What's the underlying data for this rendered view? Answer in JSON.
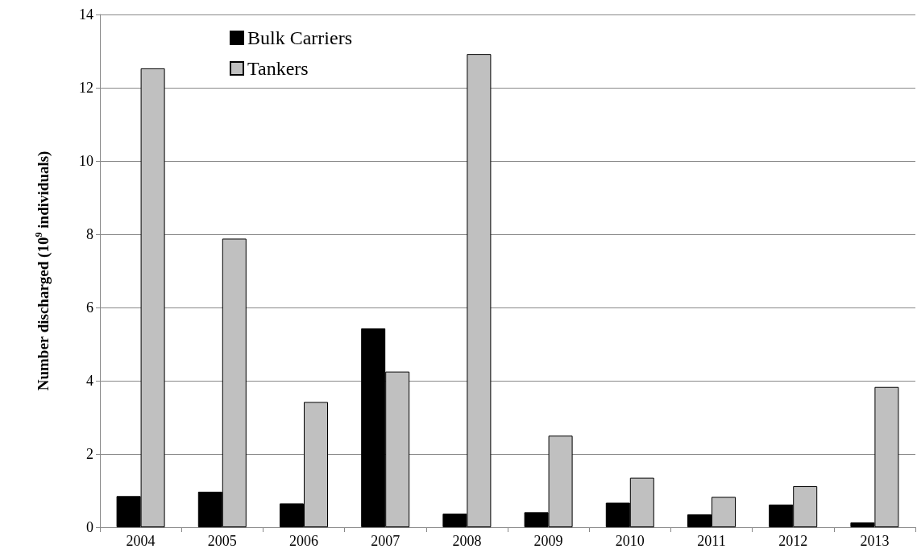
{
  "chart_data": {
    "type": "bar",
    "ylabel": "Number discharged (10$^{9}$ individuals)",
    "categories": [
      "2004",
      "2005",
      "2006",
      "2007",
      "2008",
      "2009",
      "2010",
      "2011",
      "2012",
      "2013"
    ],
    "series": [
      {
        "name": "Bulk Carriers",
        "color": "#000000",
        "values": [
          0.85,
          0.97,
          0.65,
          5.43,
          0.37,
          0.41,
          0.67,
          0.35,
          0.62,
          0.13
        ]
      },
      {
        "name": "Tankers",
        "color": "#c0c0c0",
        "values": [
          12.53,
          7.88,
          3.42,
          4.25,
          12.92,
          2.5,
          1.35,
          0.83,
          1.12,
          3.83
        ]
      }
    ],
    "ylim": [
      0,
      14
    ],
    "yticks": [
      0,
      2,
      4,
      6,
      8,
      10,
      12,
      14
    ],
    "grid": "y",
    "legend": "top left"
  }
}
